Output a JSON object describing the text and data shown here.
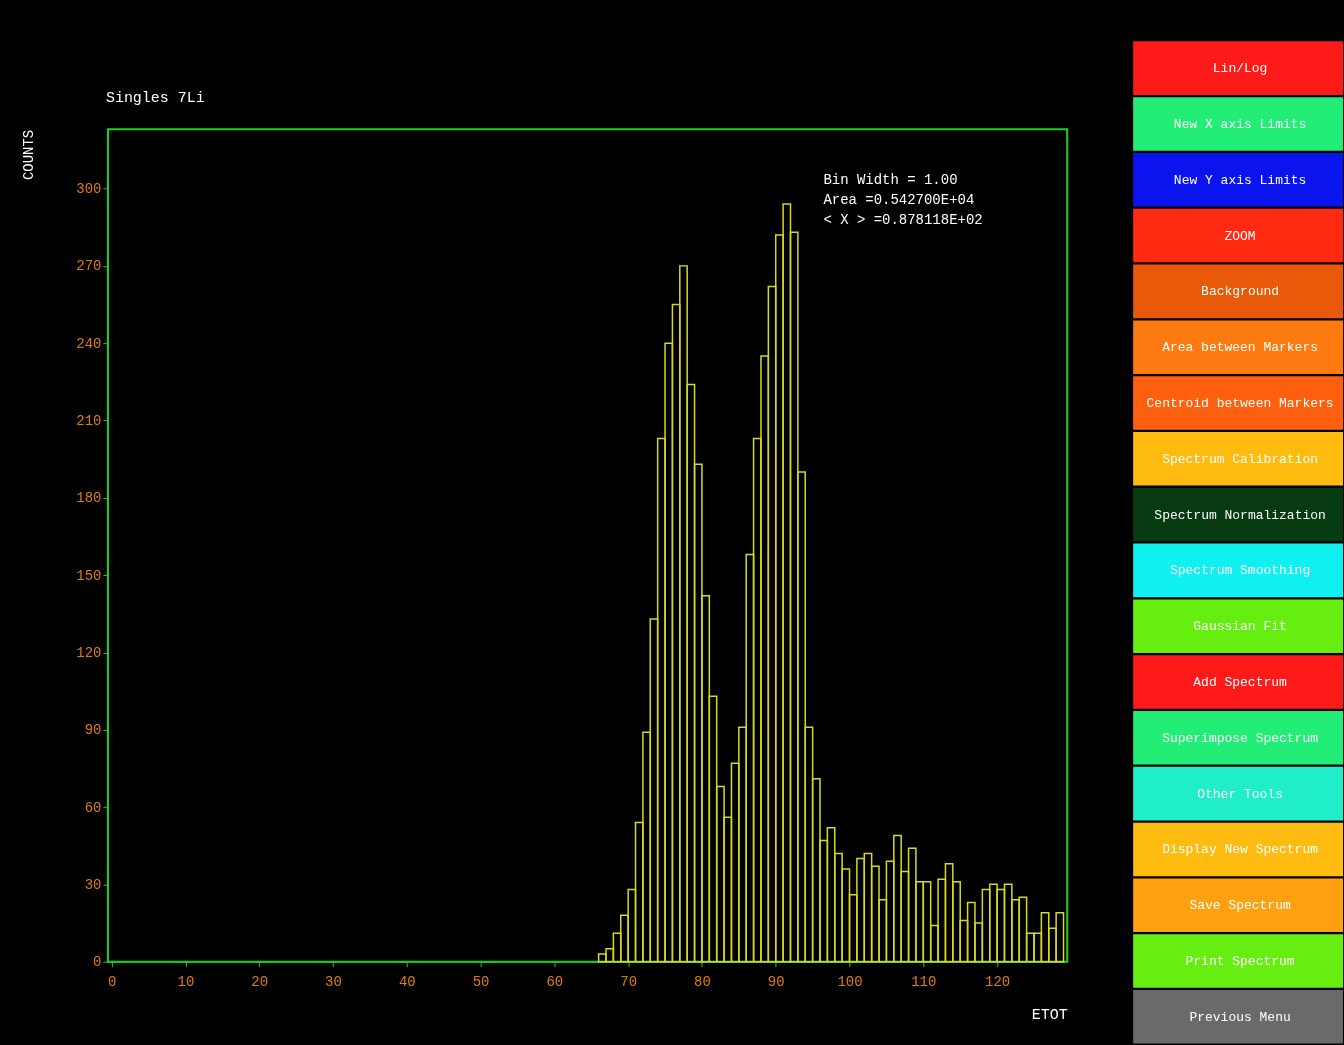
{
  "chart_data": [
    {
      "type": "histogram",
      "title": "Singles 7Li",
      "xlabel": "ETOT",
      "ylabel": "COUNTS",
      "color": "#d8d820",
      "bins": [
        66,
        67,
        68,
        69,
        70,
        71,
        72,
        73,
        74,
        75,
        76,
        77,
        78,
        79,
        80,
        81,
        82,
        83,
        84,
        85,
        86,
        87,
        88,
        89,
        90,
        91,
        92,
        93,
        94,
        95,
        96,
        97,
        98,
        99,
        100,
        101,
        102,
        103,
        104,
        105,
        106,
        107,
        108,
        109,
        110,
        111,
        112,
        113,
        114,
        115,
        116,
        117,
        118,
        119,
        120,
        121,
        122,
        123,
        124,
        125,
        126,
        127,
        128,
        129
      ],
      "values": [
        3,
        5,
        11,
        18,
        28,
        54,
        89,
        133,
        203,
        240,
        255,
        270,
        224,
        193,
        142,
        103,
        68,
        56,
        77,
        91,
        158,
        203,
        235,
        262,
        282,
        294,
        283,
        190,
        91,
        71,
        47,
        52,
        42,
        36,
        26,
        40,
        42,
        37,
        24,
        39,
        49,
        35,
        44,
        31,
        31,
        14,
        32,
        38,
        31,
        16,
        23,
        15,
        28,
        30,
        28,
        30,
        24,
        25,
        11,
        11,
        19,
        13,
        19
      ],
      "xlim": [
        -0.5,
        129.5
      ],
      "ylim": [
        0,
        323
      ],
      "xticks": [
        0,
        10,
        20,
        30,
        40,
        50,
        60,
        70,
        80,
        90,
        100,
        110,
        120
      ],
      "yticks": [
        0,
        30,
        60,
        90,
        120,
        150,
        180,
        210,
        240,
        270,
        300
      ],
      "grid": false,
      "annotations": [
        "Bin Width =     1.00",
        "Area  =0.542700E+04",
        "< X > =0.878118E+02"
      ]
    },
    {
      "type": "other",
      "annotations": [
        "Lin/Log",
        "New X axis Limits",
        "New Y axis Limits",
        "ZOOM",
        "Background",
        "Area between Markers",
        "Centroid between Markers",
        "Spectrum Calibration",
        "Spectrum Normalization",
        "Spectrum Smoothing",
        "Gaussian Fit",
        "Add Spectrum",
        "Superimpose Spectrum",
        "Other Tools",
        "Display New Spectrum",
        "Save Spectrum",
        "Print Spectrum",
        "Previous Menu"
      ],
      "colors": [
        "#ff1a1a",
        "#22ee77",
        "#0a14ee",
        "#ff2a10",
        "#e85a0a",
        "#ff7a10",
        "#ff6010",
        "#ffbb10",
        "#063a10",
        "#10f0f0",
        "#66ee10",
        "#ff1a1a",
        "#22ee77",
        "#20eec8",
        "#ffbb10",
        "#ffa010",
        "#66ee10",
        "#6a6a6a"
      ]
    }
  ]
}
